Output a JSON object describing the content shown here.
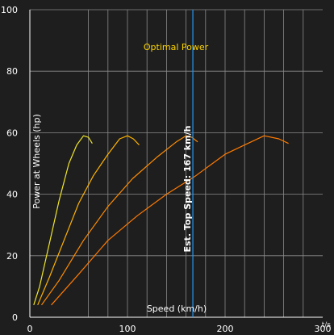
{
  "chart_data": {
    "type": "line",
    "title": "Optimal Power",
    "xlabel": "Speed (km/h)",
    "ylabel": "Power at Wheels (hp)",
    "xlim": [
      0,
      300
    ],
    "ylim": [
      0,
      100
    ],
    "xticks": [
      0,
      100,
      200,
      300
    ],
    "yticks": [
      0,
      20,
      40,
      60,
      80,
      100
    ],
    "grid": true,
    "corner_label": "t/s",
    "vline": {
      "x": 167,
      "label": "Est. Top Speed: 167 km/h",
      "color": "#2196f3"
    },
    "series": [
      {
        "gear": 1,
        "color": "#f0e62a",
        "x": [
          4,
          10,
          20,
          30,
          40,
          48,
          55,
          60,
          64
        ],
        "y": [
          4,
          10,
          24,
          38,
          50,
          56,
          59,
          58.5,
          56.5
        ]
      },
      {
        "gear": 2,
        "color": "#ffb300",
        "x": [
          8,
          20,
          35,
          50,
          65,
          80,
          92,
          100,
          106,
          112
        ],
        "y": [
          4,
          13,
          25,
          37,
          46,
          53,
          58,
          59,
          58,
          56
        ]
      },
      {
        "gear": 3,
        "color": "#ff8c00",
        "x": [
          12,
          30,
          55,
          80,
          105,
          130,
          150,
          160,
          166,
          172
        ],
        "y": [
          4,
          12,
          25,
          36,
          45,
          52,
          57,
          59,
          58.5,
          57
        ]
      },
      {
        "gear": 4,
        "color": "#ff7a00",
        "x": [
          22,
          50,
          80,
          110,
          140,
          170,
          200,
          220,
          240,
          255,
          265
        ],
        "y": [
          4,
          14,
          25,
          33,
          40,
          46,
          53,
          56,
          59,
          58,
          56.5
        ]
      }
    ]
  }
}
